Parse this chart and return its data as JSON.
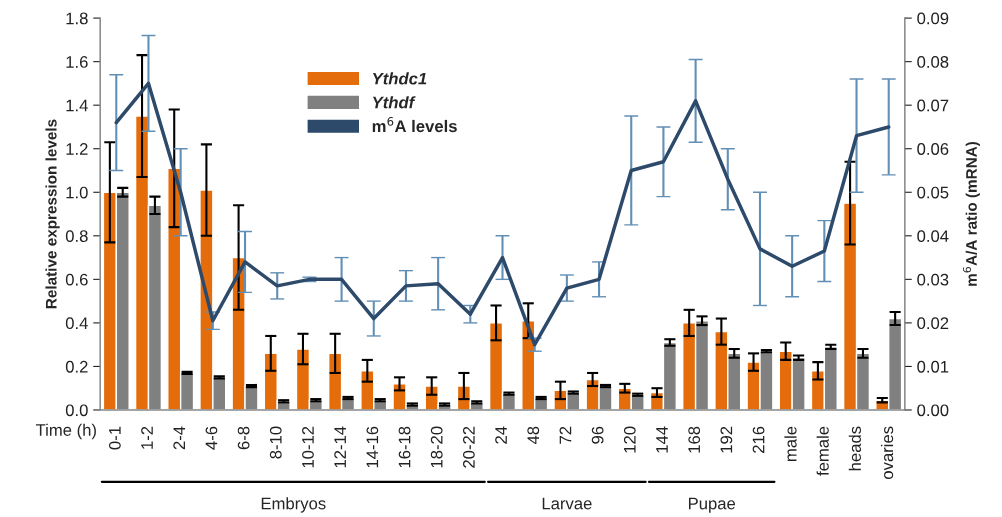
{
  "chart_data": {
    "type": "bar",
    "categories": [
      "0-1",
      "1-2",
      "2-4",
      "4-6",
      "6-8",
      "8-10",
      "10-12",
      "12-14",
      "14-16",
      "16-18",
      "18-20",
      "20-22",
      "24",
      "48",
      "72",
      "96",
      "120",
      "144",
      "168",
      "192",
      "216",
      "male",
      "female",
      "heads",
      "ovaries"
    ],
    "ylabel": "Relative expression levels",
    "y2label": "m$^{6}$A/A ratio (mRNA)",
    "series": [
      {
        "name": "Ythdc1",
        "color": "#e46c0a",
        "values": [
          1.0,
          1.35,
          1.11,
          1.01,
          0.7,
          0.26,
          0.28,
          0.26,
          0.18,
          0.12,
          0.11,
          0.11,
          0.4,
          0.41,
          0.09,
          0.14,
          0.1,
          0.08,
          0.4,
          0.36,
          0.22,
          0.27,
          0.18,
          0.95,
          0.045
        ],
        "errors": [
          0.23,
          0.28,
          0.27,
          0.21,
          0.24,
          0.08,
          0.07,
          0.09,
          0.05,
          0.03,
          0.04,
          0.06,
          0.08,
          0.08,
          0.04,
          0.03,
          0.02,
          0.02,
          0.06,
          0.06,
          0.04,
          0.04,
          0.04,
          0.19,
          0.01
        ]
      },
      {
        "name": "Ythdf",
        "color": "#808080",
        "values": [
          1.0,
          0.94,
          0.17,
          0.15,
          0.11,
          0.04,
          0.045,
          0.055,
          0.045,
          0.025,
          0.025,
          0.035,
          0.075,
          0.055,
          0.08,
          0.11,
          0.07,
          0.31,
          0.41,
          0.26,
          0.27,
          0.24,
          0.29,
          0.26,
          0.42
        ],
        "errors": [
          0.02,
          0.04,
          0.005,
          0.005,
          0.005,
          0.005,
          0.005,
          0.005,
          0.005,
          0.005,
          0.005,
          0.005,
          0.005,
          0.005,
          0.005,
          0.005,
          0.005,
          0.015,
          0.02,
          0.02,
          0.005,
          0.01,
          0.01,
          0.02,
          0.03
        ]
      },
      {
        "name": "m$^{6}$A levels",
        "type": "line",
        "axis": "y2",
        "color": "#2e4a6b",
        "values": [
          0.066,
          0.075,
          0.05,
          0.0205,
          0.034,
          0.0285,
          0.03,
          0.03,
          0.021,
          0.0285,
          0.029,
          0.022,
          0.035,
          0.015,
          0.028,
          0.03,
          0.055,
          0.057,
          0.071,
          0.053,
          0.037,
          0.033,
          0.0365,
          0.063,
          0.065
        ],
        "errors": [
          0.011,
          0.011,
          0.01,
          0.002,
          0.007,
          0.003,
          0.0005,
          0.005,
          0.004,
          0.0035,
          0.006,
          0.002,
          0.005,
          0.0015,
          0.003,
          0.004,
          0.0125,
          0.008,
          0.0095,
          0.007,
          0.013,
          0.007,
          0.007,
          0.013,
          0.011
        ]
      }
    ],
    "ylim": [
      0,
      1.8
    ],
    "yticks": [
      {
        "value": 0,
        "label": "0.0"
      },
      0.2,
      0.4,
      0.6,
      0.8,
      {
        "value": 1,
        "label": "1.0"
      },
      1.2,
      1.4,
      1.6,
      1.8
    ],
    "y2lim": [
      0,
      0.09
    ],
    "y2ticks": [
      {
        "value": 0,
        "label": "0.00"
      },
      0.01,
      0.02,
      0.03,
      0.04,
      0.05,
      0.06,
      0.07,
      0.08,
      0.09
    ],
    "grid": false,
    "legend": "top left",
    "annotations": [
      "Time (h)",
      "Embryos",
      "Larvae",
      "Pupae"
    ]
  }
}
